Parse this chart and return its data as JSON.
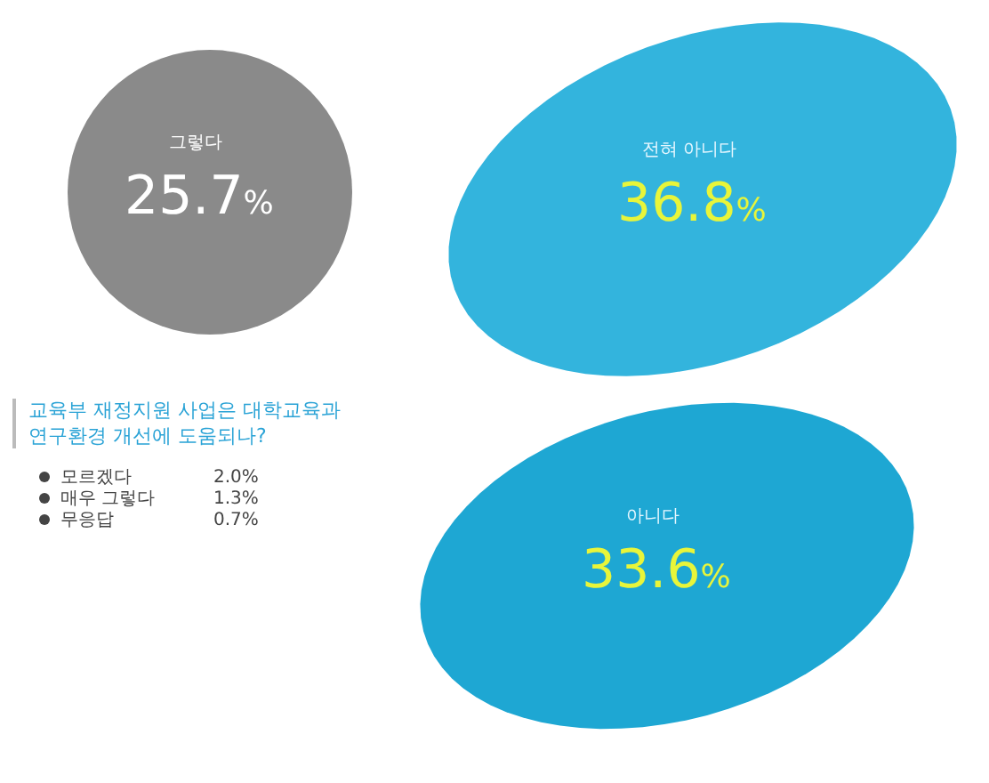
{
  "chart_data": {
    "type": "other",
    "title": "교육부 재정지원 사업은 대학교육과 연구환경 개선에 도움되나?",
    "categories": [
      "그렇다",
      "전혀 아니다",
      "아니다"
    ],
    "values": [
      25.7,
      36.8,
      33.6
    ],
    "value_labels": [
      "25.7%",
      "36.8%",
      "33.6%"
    ],
    "colors": [
      "#8a8a8a",
      "#33b4dd",
      "#1ea7d3"
    ],
    "annotations": [
      "모르겠다",
      "2.0%",
      "매우 그렇다",
      "1.3%",
      "무응답",
      "0.7%"
    ]
  }
}
